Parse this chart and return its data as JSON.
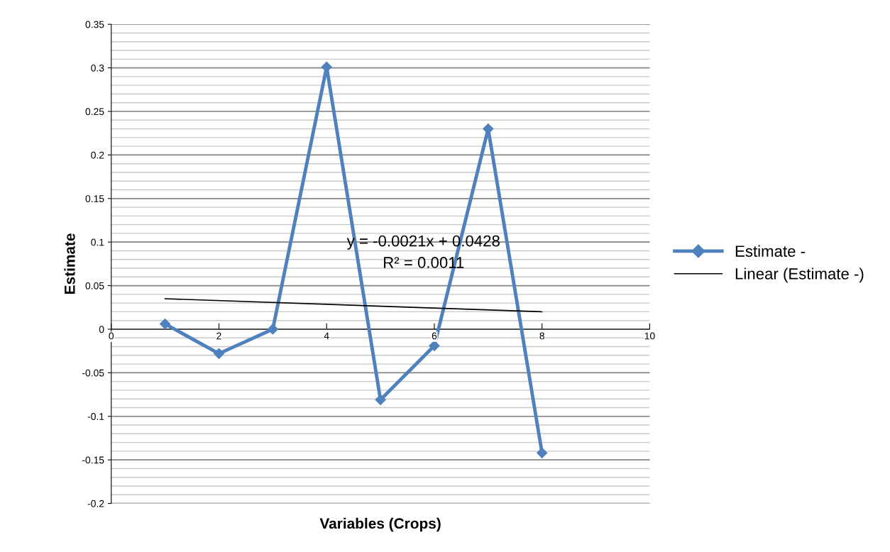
{
  "chart_data": {
    "type": "line",
    "xlabel": "Variables (Crops)",
    "ylabel": "Estimate",
    "xlim": [
      0,
      10
    ],
    "xticks": [
      0,
      2,
      4,
      6,
      8,
      10
    ],
    "ylim": [
      -0.2,
      0.35
    ],
    "yticks": [
      -0.2,
      -0.15,
      -0.1,
      -0.05,
      0,
      0.05,
      0.1,
      0.15,
      0.2,
      0.25,
      0.3,
      0.35
    ],
    "grid": "y",
    "legend": "right",
    "series": [
      {
        "name": "Estimate -",
        "color": "#4f81bd",
        "marker": "diamond",
        "x": [
          1,
          2,
          3,
          4,
          5,
          6,
          7,
          8
        ],
        "values": [
          0.006,
          -0.028,
          0.0,
          0.301,
          -0.081,
          -0.019,
          0.23,
          -0.142
        ]
      },
      {
        "name": "Linear (Estimate -)",
        "color": "#000000",
        "marker": "none",
        "x": [
          1,
          8
        ],
        "values": [
          0.035,
          0.02
        ]
      }
    ],
    "annotations": [
      "y = -0.0021x + 0.0428",
      "R² = 0.0011"
    ]
  }
}
